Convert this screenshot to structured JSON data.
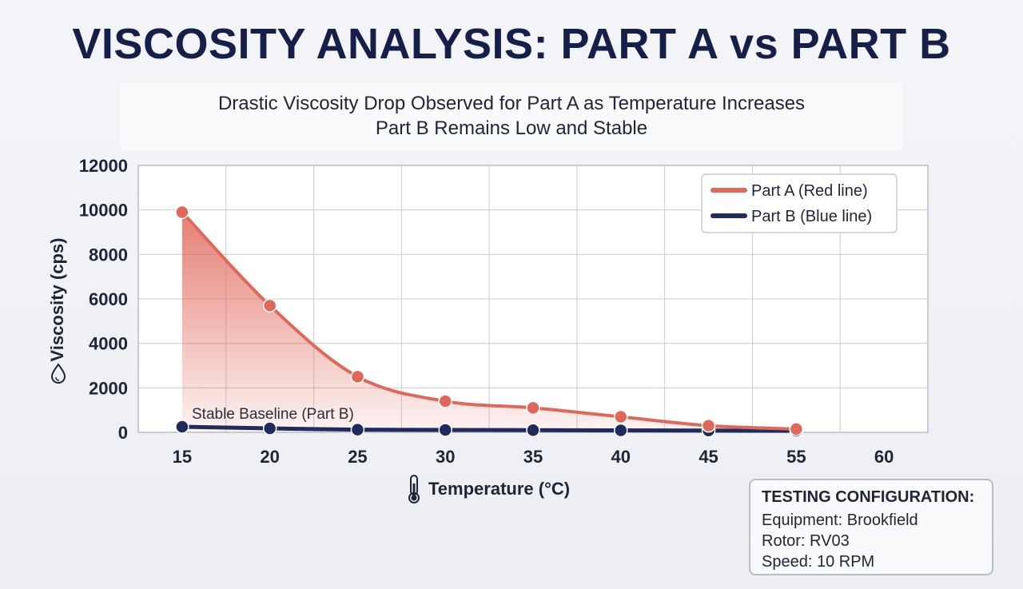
{
  "title": "VISCOSITY ANALYSIS: PART A vs PART B",
  "subtitle_line1": "Drastic Viscosity Drop Observed for Part A as Temperature Increases",
  "subtitle_line2": "Part B Remains Low and Stable",
  "colors": {
    "part_a": "#e0685a",
    "part_b": "#1e2b5c",
    "grid": "#c9ccd2",
    "text": "#14204a"
  },
  "icons": {
    "ylabel_icon": "droplet-icon",
    "xlabel_icon": "thermometer-icon"
  },
  "chart_data": {
    "type": "line",
    "xlabel": "Temperature (°C)",
    "ylabel": "Viscosity (cps)",
    "x_ticks": [
      "15",
      "20",
      "25",
      "30",
      "35",
      "40",
      "45",
      "55",
      "60"
    ],
    "y_ticks": [
      "0",
      "2000",
      "4000",
      "6000",
      "8000",
      "10000",
      "12000"
    ],
    "ylim": [
      0,
      12000
    ],
    "grid": true,
    "legend_position": "top-right",
    "categories": [
      "15",
      "20",
      "25",
      "30",
      "35",
      "40",
      "45",
      "55"
    ],
    "series": [
      {
        "name": "Part A (Red line)",
        "color": "#e0685a",
        "area_fill": true,
        "values": [
          9900,
          5700,
          2500,
          1400,
          1100,
          700,
          300,
          150
        ]
      },
      {
        "name": "Part B (Blue line)",
        "color": "#1e2b5c",
        "area_fill": false,
        "values": [
          250,
          180,
          120,
          110,
          100,
          90,
          80,
          70
        ]
      }
    ],
    "annotation": "Stable Baseline (Part B)"
  },
  "config": {
    "title": "TESTING CONFIGURATION:",
    "equipment": "Equipment: Brookfield",
    "rotor": "Rotor: RV03",
    "speed": "Speed: 10 RPM"
  }
}
